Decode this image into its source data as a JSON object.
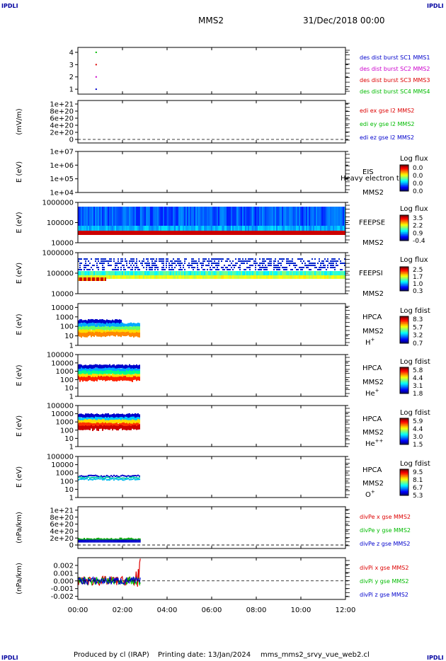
{
  "header": {
    "spacecraft": "MMS2",
    "datetime": "31/Dec/2018 00:00",
    "corner_label": "IPDLI"
  },
  "footer": {
    "producer": "Produced by cl (IRAP)",
    "printing_date": "Printing date: 13/Jan/2024",
    "filename": "mms_mms2_srvy_vue_web2.cl"
  },
  "chart_data": [
    {
      "id": "burst",
      "type": "scatter",
      "ylabel": "",
      "yticks": [
        "1",
        "2",
        "3",
        "4"
      ],
      "ylim": [
        0.6,
        4.4
      ],
      "scale": "linear",
      "series": [
        {
          "name": "des dist burst SC1 MMS1",
          "color": "#0000cc",
          "points": [
            [
              0.82,
              1
            ]
          ]
        },
        {
          "name": "des dist burst SC2 MMS2",
          "color": "#cc00cc",
          "points": [
            [
              0.82,
              2
            ]
          ]
        },
        {
          "name": "des dist burst SC3 MMS3",
          "color": "#dd0000",
          "points": [
            [
              0.82,
              3
            ]
          ]
        },
        {
          "name": "des dist burst SC4 MMS4",
          "color": "#00bb00",
          "points": [
            [
              0.82,
              4
            ]
          ]
        }
      ]
    },
    {
      "id": "edi",
      "type": "line",
      "ylabel": "(mV/m)",
      "yticks": [
        "0",
        "2e+20",
        "4e+20",
        "6e+20",
        "8e+20",
        "1e+21"
      ],
      "ylim": [
        -0.1,
        1.1
      ],
      "scale": "linear",
      "zero_line": true,
      "series": [
        {
          "name": "edi ex gse l2 MMS2",
          "color": "#dd0000"
        },
        {
          "name": "edi ey gse l2 MMS2",
          "color": "#00bb00"
        },
        {
          "name": "edi ez gse l2 MMS2",
          "color": "#0000cc"
        }
      ]
    },
    {
      "id": "eis",
      "type": "heatmap",
      "ylabel": "E (eV)",
      "yticks": [
        "1e+04",
        "1e+05",
        "1e+06",
        "1e+07"
      ],
      "ylim": [
        4,
        7
      ],
      "scale": "log",
      "instrument": "EIS",
      "spacecraft": "MMS2",
      "note": "Heavy electron to",
      "colorbar_title": "Log flux",
      "colorbar_ticks": [
        "0.0",
        "0.0",
        "0.0",
        "0.0"
      ]
    },
    {
      "id": "feepse",
      "type": "heatmap",
      "ylabel": "E (eV)",
      "yticks": [
        "10000",
        "100000",
        "1000000"
      ],
      "ylim": [
        4,
        6
      ],
      "scale": "log",
      "instrument": "FEEPSE",
      "spacecraft": "MMS2",
      "colorbar_title": "Log flux",
      "colorbar_ticks": [
        "3.5",
        "2.2",
        "0.9",
        "-0.4"
      ],
      "coverage_hours": [
        0,
        12
      ]
    },
    {
      "id": "feepsi",
      "type": "heatmap",
      "ylabel": "E (eV)",
      "yticks": [
        "10000",
        "100000",
        "1000000"
      ],
      "ylim": [
        4,
        6
      ],
      "scale": "log",
      "instrument": "FEEPSI",
      "spacecraft": "MMS2",
      "colorbar_title": "Log flux",
      "colorbar_ticks": [
        "2.5",
        "1.7",
        "1.0",
        "0.3"
      ],
      "coverage_hours": [
        0,
        12
      ]
    },
    {
      "id": "hpca_h",
      "type": "heatmap",
      "ylabel": "E (eV)",
      "yticks": [
        "1",
        "10",
        "100",
        "1000",
        "10000"
      ],
      "ylim": [
        0,
        4.4
      ],
      "scale": "log",
      "instrument": "HPCA",
      "spacecraft": "MMS2",
      "species": "H",
      "species_sup": "+",
      "colorbar_title": "Log fdist",
      "colorbar_ticks": [
        "8.3",
        "5.7",
        "3.2",
        "0.7"
      ],
      "coverage_hours": [
        0,
        2.8
      ]
    },
    {
      "id": "hpca_he",
      "type": "heatmap",
      "ylabel": "E (eV)",
      "yticks": [
        "1",
        "10",
        "100",
        "1000",
        "10000",
        "100000"
      ],
      "ylim": [
        0,
        5
      ],
      "scale": "log",
      "instrument": "HPCA",
      "spacecraft": "MMS2",
      "species": "He",
      "species_sup": "+",
      "colorbar_title": "Log fdist",
      "colorbar_ticks": [
        "5.8",
        "4.4",
        "3.1",
        "1.8"
      ],
      "coverage_hours": [
        0,
        2.8
      ]
    },
    {
      "id": "hpca_hepp",
      "type": "heatmap",
      "ylabel": "E (eV)",
      "yticks": [
        "1",
        "10",
        "100",
        "1000",
        "10000",
        "100000"
      ],
      "ylim": [
        0,
        5
      ],
      "scale": "log",
      "instrument": "HPCA",
      "spacecraft": "MMS2",
      "species": "He",
      "species_sup": "++",
      "colorbar_title": "Log fdist",
      "colorbar_ticks": [
        "5.9",
        "4.4",
        "3.0",
        "1.5"
      ],
      "coverage_hours": [
        0,
        2.8
      ]
    },
    {
      "id": "hpca_o",
      "type": "heatmap",
      "ylabel": "E (eV)",
      "yticks": [
        "1",
        "10",
        "100",
        "1000",
        "10000",
        "100000"
      ],
      "ylim": [
        0,
        5
      ],
      "scale": "log",
      "instrument": "HPCA",
      "spacecraft": "MMS2",
      "species": "O",
      "species_sup": "+",
      "colorbar_title": "Log fdist",
      "colorbar_ticks": [
        "9.5",
        "8.1",
        "6.7",
        "5.3"
      ],
      "coverage_hours": [
        0,
        2.8
      ]
    },
    {
      "id": "divpe",
      "type": "line",
      "ylabel": "(nPa/km)",
      "yticks": [
        "0",
        "2e+20",
        "4e+20",
        "6e+20",
        "8e+20",
        "1e+21"
      ],
      "ylim": [
        -0.1,
        1.1
      ],
      "scale": "linear",
      "zero_line": true,
      "series": [
        {
          "name": "divPe x gse MMS2",
          "color": "#dd0000"
        },
        {
          "name": "divPe y gse MMS2",
          "color": "#00bb00"
        },
        {
          "name": "divPe z gse MMS2",
          "color": "#0000cc"
        }
      ]
    },
    {
      "id": "divpi",
      "type": "line",
      "ylabel": "(nPa/km)",
      "yticks": [
        "-0.002",
        "-0.001",
        "0.000",
        "0.001",
        "0.002"
      ],
      "ylim": [
        -0.0024,
        0.003
      ],
      "scale": "linear",
      "zero_line": true,
      "coverage_hours": [
        0,
        2.8
      ],
      "series": [
        {
          "name": "divPi x gse MMS2",
          "color": "#dd0000"
        },
        {
          "name": "divPi y gse MMS2",
          "color": "#00bb00"
        },
        {
          "name": "divPi z gse MMS2",
          "color": "#0000cc"
        }
      ]
    }
  ],
  "x_axis": {
    "ticks": [
      "00:00",
      "02:00",
      "04:00",
      "06:00",
      "08:00",
      "10:00",
      "12:00"
    ],
    "range_hours": [
      0,
      12
    ]
  }
}
